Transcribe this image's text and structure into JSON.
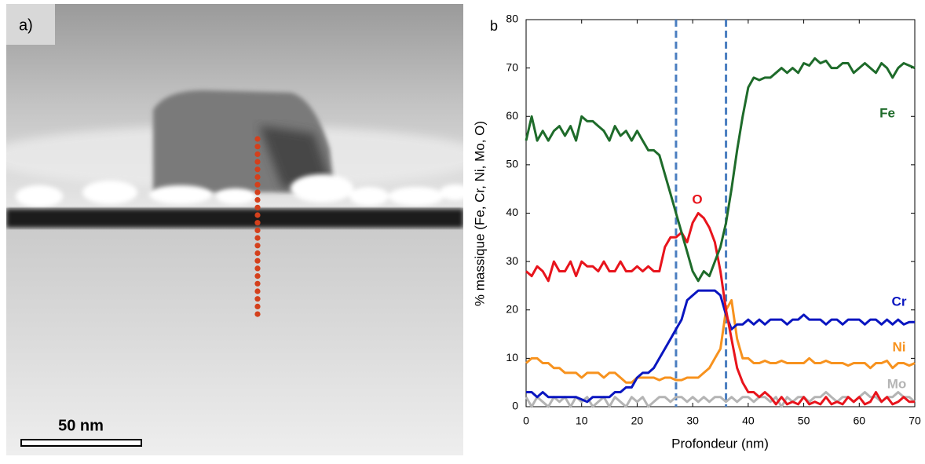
{
  "image": {
    "label": "a)",
    "scale_bar": "50 nm"
  },
  "chart_data": {
    "type": "line",
    "panel_label": "b",
    "x_label": "Profondeur (nm)",
    "y_label": "% massique (Fe, Cr, Ni, Mo, O)",
    "xlim": [
      0,
      70
    ],
    "xticks": [
      0,
      10,
      20,
      30,
      40,
      50,
      60,
      70
    ],
    "ylim": [
      0,
      80
    ],
    "yticks": [
      0,
      10,
      20,
      30,
      40,
      50,
      60,
      70,
      80
    ],
    "vlines": [
      27,
      36
    ],
    "vline_color": "#4a7ec0",
    "x": [
      0,
      1,
      2,
      3,
      4,
      5,
      6,
      7,
      8,
      9,
      10,
      11,
      12,
      13,
      14,
      15,
      16,
      17,
      18,
      19,
      20,
      21,
      22,
      23,
      24,
      25,
      26,
      27,
      28,
      29,
      30,
      31,
      32,
      33,
      34,
      35,
      36,
      37,
      38,
      39,
      40,
      41,
      42,
      43,
      44,
      45,
      46,
      47,
      48,
      49,
      50,
      51,
      52,
      53,
      54,
      55,
      56,
      57,
      58,
      59,
      60,
      61,
      62,
      63,
      64,
      65,
      66,
      67,
      68,
      69,
      70
    ],
    "series": [
      {
        "name": "Mo",
        "color": "#b4b4b4",
        "values": [
          2,
          0,
          2,
          1,
          0,
          2,
          1,
          2,
          0,
          2,
          1,
          2,
          0,
          1,
          2,
          0,
          2,
          1,
          0,
          2,
          1,
          2,
          0,
          1,
          2,
          2,
          1,
          2,
          2,
          1,
          2,
          1,
          2,
          1,
          2,
          2,
          1,
          2,
          1,
          2,
          2,
          1,
          2,
          2,
          1,
          2,
          0,
          2,
          1,
          2,
          2,
          1,
          2,
          2,
          3,
          2,
          1,
          2,
          2,
          1,
          2,
          3,
          2,
          2,
          1,
          2,
          2,
          3,
          2,
          2,
          1
        ]
      },
      {
        "name": "Ni",
        "color": "#f7921e",
        "values": [
          9,
          10,
          10,
          9,
          9,
          8,
          8,
          7,
          7,
          7,
          6,
          7,
          7,
          7,
          6,
          7,
          7,
          6,
          5,
          5,
          6,
          6,
          6,
          6,
          5.5,
          6,
          6,
          5.5,
          5.5,
          6,
          6,
          6,
          7,
          8,
          10,
          12,
          20,
          22,
          14,
          10,
          10,
          9,
          9,
          9.5,
          9,
          9,
          9.5,
          9,
          9,
          9,
          9,
          10,
          9,
          9,
          9.5,
          9,
          9,
          9,
          8.5,
          9,
          9,
          9,
          8,
          9,
          9,
          9.5,
          8,
          9,
          9,
          8.5,
          9
        ]
      },
      {
        "name": "Cr",
        "color": "#0a16c0",
        "values": [
          3,
          3,
          2,
          3,
          2,
          2,
          2,
          2,
          2,
          2,
          1.5,
          1,
          2,
          2,
          2,
          2,
          3,
          3,
          4,
          4,
          6,
          7,
          7,
          8,
          10,
          12,
          14,
          16,
          18,
          22,
          23,
          24,
          24,
          24,
          24,
          23,
          19,
          16,
          17,
          17,
          18,
          17,
          18,
          17,
          18,
          18,
          18,
          17,
          18,
          18,
          19,
          18,
          18,
          18,
          17,
          18,
          18,
          17,
          18,
          18,
          18,
          17,
          18,
          18,
          17,
          18,
          17,
          18,
          17,
          17.5,
          17.5
        ]
      },
      {
        "name": "O",
        "color": "#e8141c",
        "values": [
          28,
          27,
          29,
          28,
          26,
          30,
          28,
          28,
          30,
          27,
          30,
          29,
          29,
          28,
          30,
          28,
          28,
          30,
          28,
          28,
          29,
          28,
          29,
          28,
          28,
          33,
          35,
          35,
          36,
          34,
          38,
          40,
          39,
          37,
          34,
          28,
          20,
          14,
          8,
          5,
          3,
          3,
          2,
          3,
          2,
          0.5,
          2,
          0.5,
          1,
          0.5,
          2,
          0.5,
          1,
          0.5,
          2,
          0.5,
          1,
          0.5,
          2,
          1,
          2,
          0.5,
          1,
          3,
          1,
          2,
          0.5,
          1,
          2,
          1,
          1
        ]
      },
      {
        "name": "Fe",
        "color": "#1e6b2a",
        "values": [
          55,
          60,
          55,
          57,
          55,
          57,
          58,
          56,
          58,
          55,
          60,
          59,
          59,
          58,
          57,
          55,
          58,
          56,
          57,
          55,
          57,
          55,
          53,
          53,
          52,
          48,
          44,
          40,
          36,
          32,
          28,
          26,
          28,
          27,
          30,
          33,
          38,
          45,
          53,
          60,
          66,
          68,
          67.5,
          68,
          68,
          69,
          70,
          69,
          70,
          69,
          71,
          70.5,
          72,
          71,
          71.5,
          70,
          70,
          71,
          71,
          69,
          70,
          71,
          70,
          69,
          71,
          70,
          68,
          70,
          71,
          70.5,
          70
        ]
      }
    ]
  }
}
